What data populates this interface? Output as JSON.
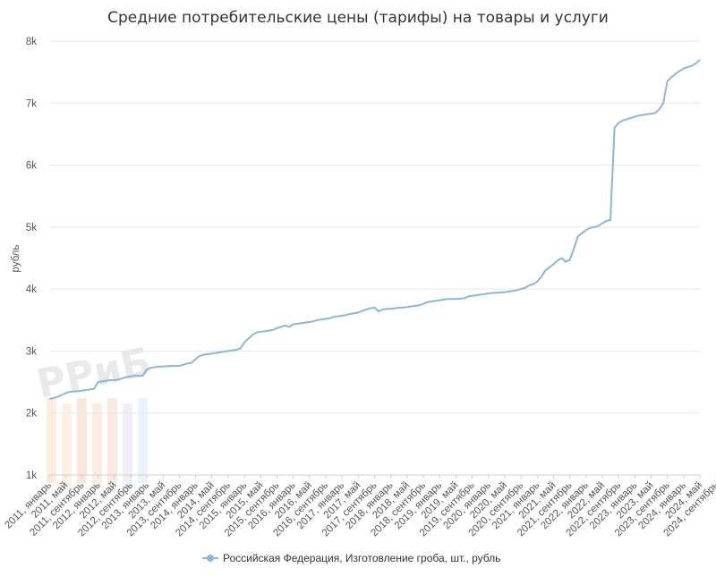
{
  "chart_data": {
    "type": "line",
    "title": "Средние потребительские цены (тарифы) на товары и услуги",
    "ylabel": "рубль",
    "xlabel": "",
    "ylim": [
      1000,
      8000
    ],
    "y_ticks": [
      "1k",
      "2k",
      "3k",
      "4k",
      "5k",
      "6k",
      "7k",
      "8k"
    ],
    "grid": true,
    "legend_position": "bottom-center",
    "watermark": "РРиБ",
    "x_tick_labels": [
      "2011, январь",
      "2011, май",
      "2011, сентябрь",
      "2012, январь",
      "2012, май",
      "2012, сентябрь",
      "2013, январь",
      "2013, май",
      "2013, сентябрь",
      "2014, январь",
      "2014, май",
      "2014, сентябрь",
      "2015, январь",
      "2015, май",
      "2015, сентябрь",
      "2016, январь",
      "2016, май",
      "2016, сентябрь",
      "2017, январь",
      "2017, май",
      "2017, сентябрь",
      "2018, январь",
      "2018, май",
      "2018, сентябрь",
      "2019, январь",
      "2019, май",
      "2019, сентябрь",
      "2020, январь",
      "2020, май",
      "2020, сентябрь",
      "2021, январь",
      "2021, май",
      "2021, сентябрь",
      "2022, январь",
      "2022, май",
      "2022, сентябрь",
      "2023, январь",
      "2023, май",
      "2023, сентябрь",
      "2024, январь",
      "2024, май",
      "2024, сентябрь"
    ],
    "series": [
      {
        "name": "Российская Федерация, Изготовление гроба, шт., рубль",
        "color": "#8db4d9",
        "values": [
          2230,
          2240,
          2260,
          2290,
          2320,
          2340,
          2350,
          2350,
          2360,
          2370,
          2380,
          2390,
          2500,
          2510,
          2520,
          2530,
          2530,
          2540,
          2560,
          2580,
          2590,
          2600,
          2600,
          2600,
          2700,
          2730,
          2740,
          2750,
          2750,
          2755,
          2760,
          2760,
          2760,
          2780,
          2800,
          2810,
          2870,
          2920,
          2940,
          2950,
          2960,
          2970,
          2980,
          2990,
          3000,
          3010,
          3020,
          3040,
          3140,
          3200,
          3260,
          3300,
          3310,
          3320,
          3330,
          3340,
          3370,
          3390,
          3410,
          3390,
          3430,
          3440,
          3450,
          3460,
          3470,
          3480,
          3500,
          3510,
          3520,
          3530,
          3550,
          3560,
          3570,
          3580,
          3600,
          3610,
          3620,
          3650,
          3670,
          3690,
          3700,
          3640,
          3670,
          3680,
          3680,
          3690,
          3700,
          3700,
          3710,
          3720,
          3730,
          3740,
          3760,
          3790,
          3800,
          3810,
          3820,
          3830,
          3840,
          3840,
          3840,
          3845,
          3850,
          3880,
          3890,
          3900,
          3910,
          3920,
          3930,
          3935,
          3940,
          3945,
          3950,
          3960,
          3970,
          3980,
          4000,
          4020,
          4060,
          4080,
          4120,
          4200,
          4300,
          4350,
          4400,
          4460,
          4500,
          4440,
          4470,
          4650,
          4850,
          4900,
          4950,
          4990,
          5000,
          5020,
          5060,
          5100,
          5110,
          6600,
          6680,
          6720,
          6740,
          6760,
          6780,
          6800,
          6810,
          6820,
          6830,
          6840,
          6900,
          7000,
          7350,
          7420,
          7470,
          7520,
          7560,
          7580,
          7600,
          7640,
          7700
        ]
      }
    ]
  }
}
